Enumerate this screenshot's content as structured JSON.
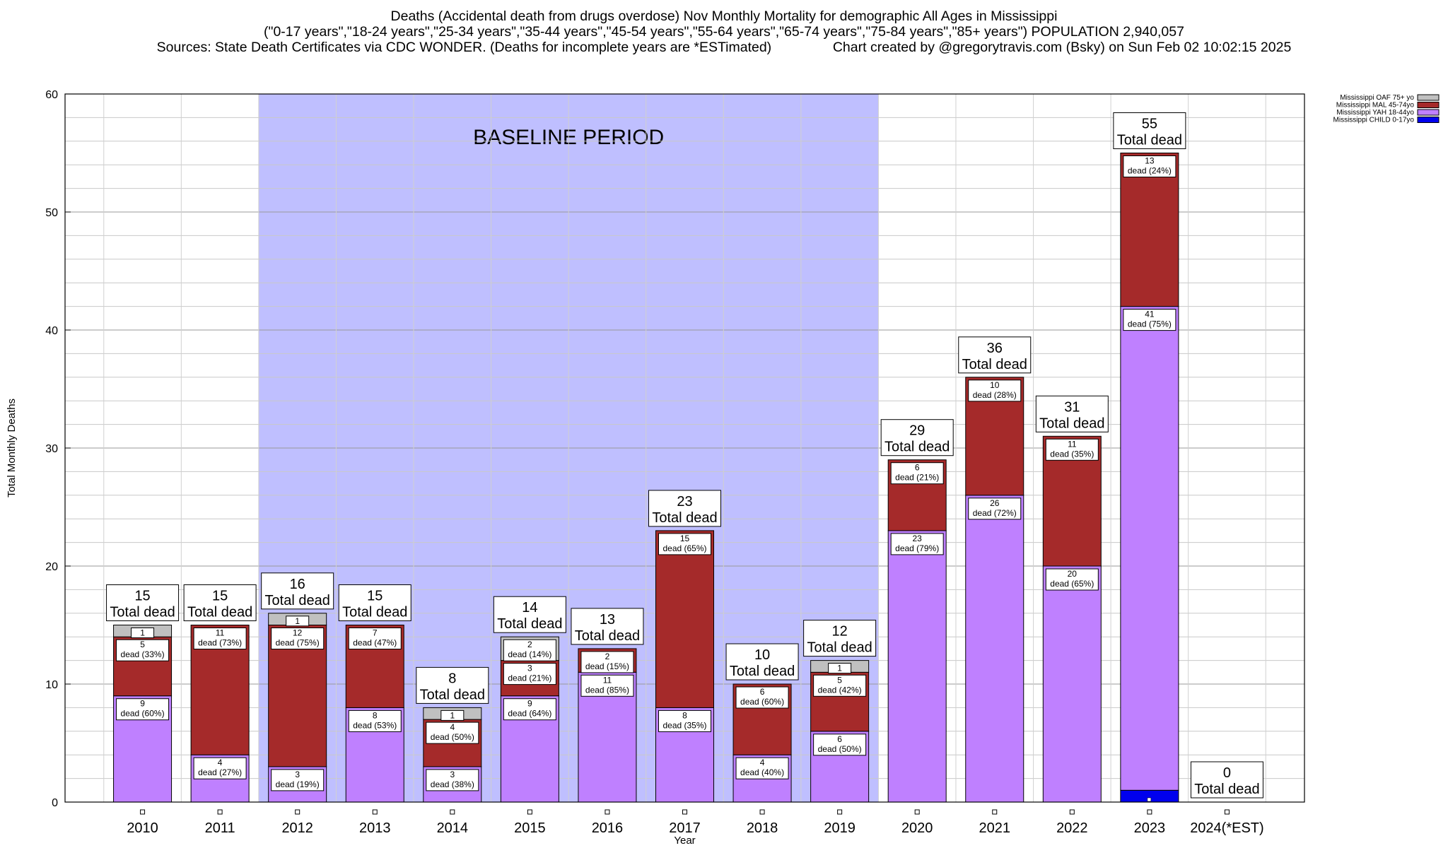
{
  "chart_data": {
    "type": "bar",
    "stacked": true,
    "title_lines": [
      "Deaths (Accidental death from drugs overdose) Nov Monthly Mortality for demographic All Ages in Mississippi",
      "(\"0-17 years\",\"18-24 years\",\"25-34 years\",\"35-44 years\",\"45-54 years\",\"55-64 years\",\"65-74 years\",\"75-84 years\",\"85+ years\") POPULATION 2,940,057",
      "Sources: State Death Certificates via CDC WONDER. (Deaths for incomplete years are *ESTimated)                Chart created by @gregorytravis.com (Bsky) on Sun Feb 02 10:02:15 2025"
    ],
    "xlabel": "Year",
    "ylabel": "Total Monthly Deaths",
    "ylim": [
      0,
      60
    ],
    "yticks": [
      "0",
      "10",
      "20",
      "30",
      "40",
      "50",
      "60"
    ],
    "grid": true,
    "legend_position": "top-right",
    "baseline": {
      "label": "BASELINE PERIOD",
      "from": "2012",
      "to": "2019",
      "color": "#bfbfff"
    },
    "total_suffix": "Total dead",
    "categories": [
      "2010",
      "2011",
      "2012",
      "2013",
      "2014",
      "2015",
      "2016",
      "2017",
      "2018",
      "2019",
      "2020",
      "2021",
      "2022",
      "2023",
      "2024(*EST)"
    ],
    "totals": [
      15,
      15,
      16,
      15,
      8,
      14,
      13,
      23,
      10,
      12,
      29,
      36,
      31,
      55,
      0
    ],
    "series": [
      {
        "name": "Mississippi CHILD 0-17yo",
        "color": "#0000ee",
        "values": [
          0,
          0,
          0,
          0,
          0,
          0,
          0,
          0,
          0,
          0,
          0,
          0,
          0,
          1,
          0
        ],
        "labels": [
          null,
          null,
          null,
          null,
          null,
          null,
          null,
          null,
          null,
          null,
          null,
          null,
          null,
          null,
          null
        ]
      },
      {
        "name": "Mississippi YAH 18-44yo",
        "color": "#bf80ff",
        "values": [
          9,
          4,
          3,
          8,
          3,
          9,
          11,
          8,
          4,
          6,
          23,
          26,
          20,
          41,
          0
        ],
        "labels": [
          [
            "9",
            "dead (60%)"
          ],
          [
            "4",
            "dead (27%)"
          ],
          [
            "3",
            "dead (19%)"
          ],
          [
            "8",
            "dead (53%)"
          ],
          [
            "3",
            "dead (38%)"
          ],
          [
            "9",
            "dead (64%)"
          ],
          [
            "11",
            "dead (85%)"
          ],
          [
            "8",
            "dead (35%)"
          ],
          [
            "4",
            "dead (40%)"
          ],
          [
            "6",
            "dead (50%)"
          ],
          [
            "23",
            "dead (79%)"
          ],
          [
            "26",
            "dead (72%)"
          ],
          [
            "20",
            "dead (65%)"
          ],
          [
            "41",
            "dead (75%)"
          ],
          null
        ]
      },
      {
        "name": "Mississippi MAL 45-74yo",
        "color": "#a52a2a",
        "values": [
          5,
          11,
          12,
          7,
          4,
          3,
          2,
          15,
          6,
          5,
          6,
          10,
          11,
          13,
          0
        ],
        "labels": [
          [
            "5",
            "dead (33%)"
          ],
          [
            "11",
            "dead (73%)"
          ],
          [
            "12",
            "dead (75%)"
          ],
          [
            "7",
            "dead (47%)"
          ],
          [
            "4",
            "dead (50%)"
          ],
          [
            "3",
            "dead (21%)"
          ],
          [
            "2",
            "dead (15%)"
          ],
          [
            "15",
            "dead (65%)"
          ],
          [
            "6",
            "dead (60%)"
          ],
          [
            "5",
            "dead (42%)"
          ],
          [
            "6",
            "dead (21%)"
          ],
          [
            "10",
            "dead (28%)"
          ],
          [
            "11",
            "dead (35%)"
          ],
          [
            "13",
            "dead (24%)"
          ],
          null
        ]
      },
      {
        "name": "Mississippi OAF 75+ yo",
        "color": "#c0c0c0",
        "values": [
          1,
          0,
          1,
          0,
          1,
          2,
          0,
          0,
          0,
          1,
          0,
          0,
          0,
          0,
          0
        ],
        "labels": [
          [
            "1"
          ],
          null,
          [
            "1"
          ],
          null,
          [
            "1"
          ],
          [
            "2",
            "dead (14%)"
          ],
          null,
          null,
          null,
          [
            "1"
          ],
          null,
          null,
          null,
          null,
          null
        ]
      }
    ]
  }
}
